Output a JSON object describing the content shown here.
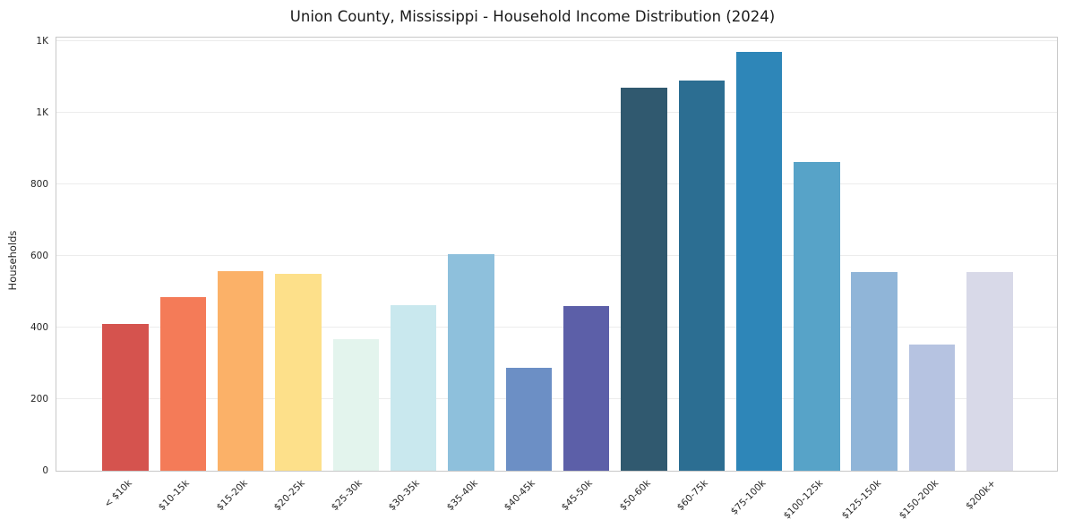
{
  "chart_data": {
    "type": "bar",
    "title": "Union County, Mississippi - Household Income Distribution (2024)",
    "xlabel": "",
    "ylabel": "Households",
    "categories": [
      "< $10k",
      "$10-15k",
      "$15-20k",
      "$20-25k",
      "$25-30k",
      "$30-35k",
      "$35-40k",
      "$40-45k",
      "$45-50k",
      "$50-60k",
      "$60-75k",
      "$75-100k",
      "$100-125k",
      "$125-150k",
      "$150-200k",
      "$200k+"
    ],
    "values": [
      410,
      485,
      557,
      550,
      367,
      462,
      605,
      287,
      460,
      1070,
      1090,
      1170,
      863,
      555,
      353,
      555
    ],
    "colors": [
      "#d5534e",
      "#f47b58",
      "#fbb168",
      "#fde08a",
      "#e3f4ed",
      "#c9e8ee",
      "#8ec0dc",
      "#6c8fc5",
      "#5c5fa8",
      "#30596f",
      "#2c6e92",
      "#2e86b8",
      "#57a3c8",
      "#90b5d8",
      "#b6c3e1",
      "#d8d9e8"
    ],
    "ylim": [
      0,
      1215
    ],
    "yticks": {
      "values": [
        0,
        200,
        400,
        600,
        800,
        1000,
        1200
      ],
      "labels": [
        "0",
        "200",
        "400",
        "600",
        "800",
        "1K",
        "1K"
      ]
    },
    "grid": "horizontal",
    "legend": "none",
    "background": "#ffffff"
  }
}
